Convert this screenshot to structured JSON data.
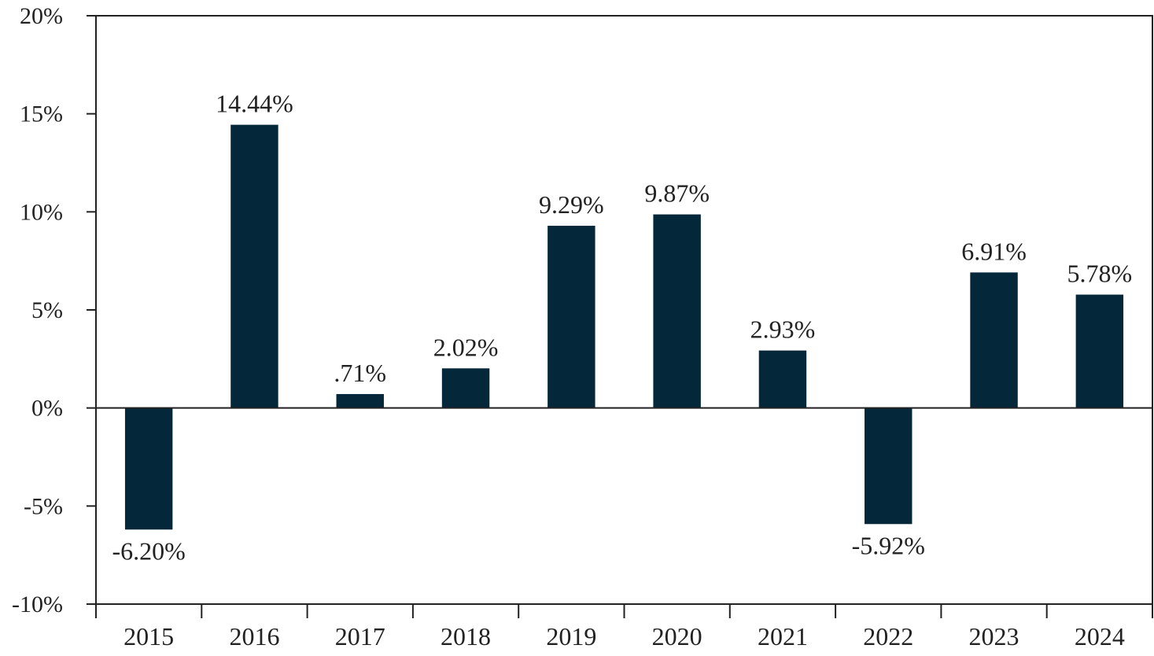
{
  "chart_data": {
    "type": "bar",
    "title": "",
    "xlabel": "",
    "ylabel": "",
    "categories": [
      "2015",
      "2016",
      "2017",
      "2018",
      "2019",
      "2020",
      "2021",
      "2022",
      "2023",
      "2024"
    ],
    "values": [
      -6.2,
      14.44,
      0.71,
      2.02,
      9.29,
      9.87,
      2.93,
      -5.92,
      6.91,
      5.78
    ],
    "data_labels": [
      "-6.20%",
      "14.44%",
      ".71%",
      "2.02%",
      "9.29%",
      "9.87%",
      "2.93%",
      "-5.92%",
      "6.91%",
      "5.78%"
    ],
    "ylim": [
      -10,
      20
    ],
    "yticks": [
      20,
      15,
      10,
      5,
      0,
      -5,
      -10
    ],
    "ytick_labels": [
      "20%",
      "15%",
      "10%",
      "5%",
      "0%",
      "-5%",
      "-10%"
    ],
    "grid": false,
    "legend": "none",
    "bar_color": "#04273a"
  }
}
